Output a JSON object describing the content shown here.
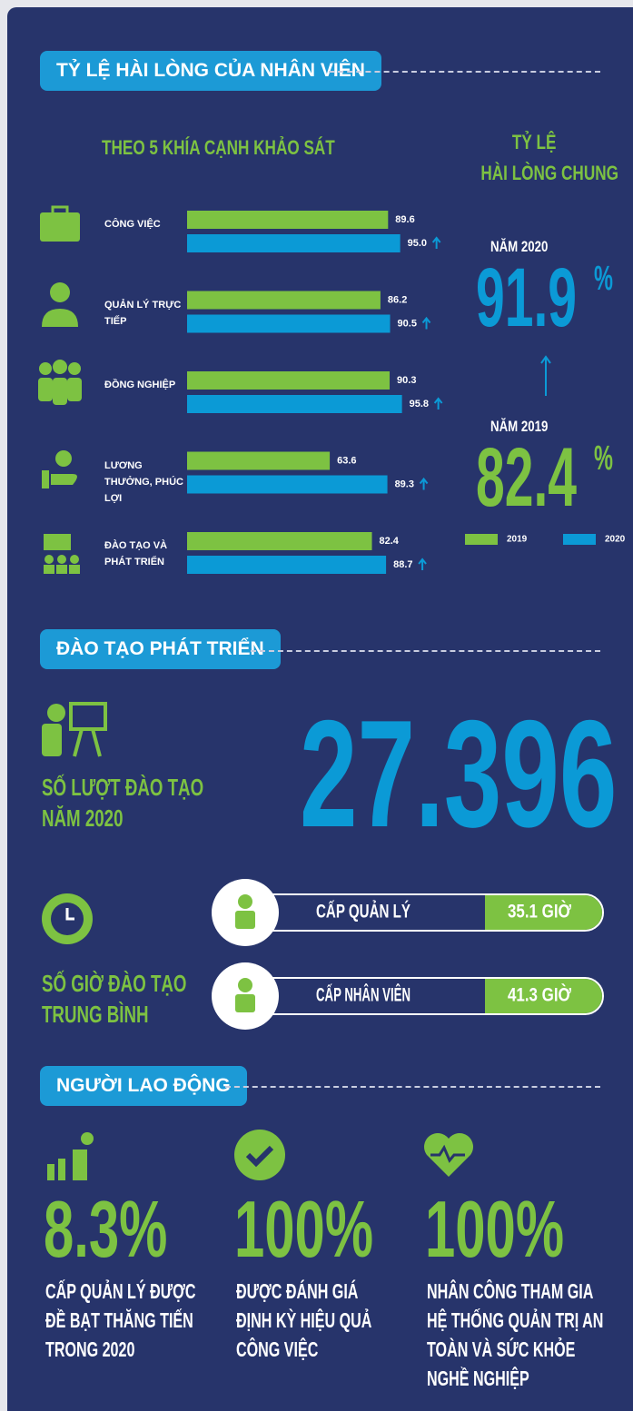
{
  "satisfaction": {
    "title": "TỶ LỆ HÀI LÒNG CỦA NHÂN VIÊN",
    "subtitle": "THEO 5 KHÍA CẠNH KHẢO SÁT",
    "overall_title": [
      "TỶ LỆ",
      "HÀI LÒNG CHUNG"
    ],
    "overall": [
      {
        "label": "NĂM 2020",
        "value": "91.9",
        "unit": "%",
        "color": "#0b9ad6"
      },
      {
        "label": "NĂM 2019",
        "value": "82.4",
        "unit": "%",
        "color": "#7dc242"
      }
    ],
    "chart_data": {
      "type": "bar",
      "orientation": "horizontal",
      "categories": [
        "CÔNG VIỆC",
        "QUẢN LÝ TRỰC TIẾP",
        "ĐỒNG NGHIỆP",
        "LƯƠNG THƯỞNG, PHÚC LỢI",
        "ĐÀO TẠO VÀ PHÁT TRIỂN"
      ],
      "xlim": [
        0,
        100
      ],
      "series": [
        {
          "name": "2019",
          "color": "#7dc242",
          "values": [
            89.6,
            86.2,
            90.3,
            63.6,
            82.4
          ]
        },
        {
          "name": "2020",
          "color": "#0b9ad6",
          "values": [
            95.0,
            90.5,
            95.8,
            89.3,
            88.7
          ],
          "value_labels": [
            "95.0",
            "90.5",
            "95.8",
            "89.3",
            "88.7"
          ]
        }
      ]
    }
  },
  "training": {
    "title": "ĐÀO TẠO PHÁT TRIỂN",
    "count_label": [
      "SỐ LƯỢT ĐÀO TẠO",
      "NĂM 2020"
    ],
    "count": "27.396",
    "hours_label": [
      "SỐ GIỜ ĐÀO TẠO",
      "TRUNG BÌNH"
    ],
    "levels": [
      {
        "name": "CẤP QUẢN LÝ",
        "hours": "35.1 GIỜ"
      },
      {
        "name": "CẤP NHÂN VIÊN",
        "hours": "41.3 GIỜ"
      }
    ]
  },
  "workers": {
    "title": "NGƯỜI LAO ĐỘNG",
    "stats": [
      {
        "value": "8.3%",
        "text": [
          "CẤP QUẢN LÝ ĐƯỢC",
          "ĐỀ BẠT THĂNG TIẾN",
          "TRONG 2020"
        ]
      },
      {
        "value": "100%",
        "text": [
          "ĐƯỢC ĐÁNH GIÁ",
          "ĐỊNH KỲ HIỆU QUẢ",
          "CÔNG VIỆC"
        ]
      },
      {
        "value": "100%",
        "text": [
          "NHÂN CÔNG THAM GIA",
          "HỆ THỐNG QUẢN TRỊ AN",
          "TOÀN VÀ SỨC KHỎE",
          "NGHỀ NGHIỆP"
        ]
      }
    ]
  }
}
